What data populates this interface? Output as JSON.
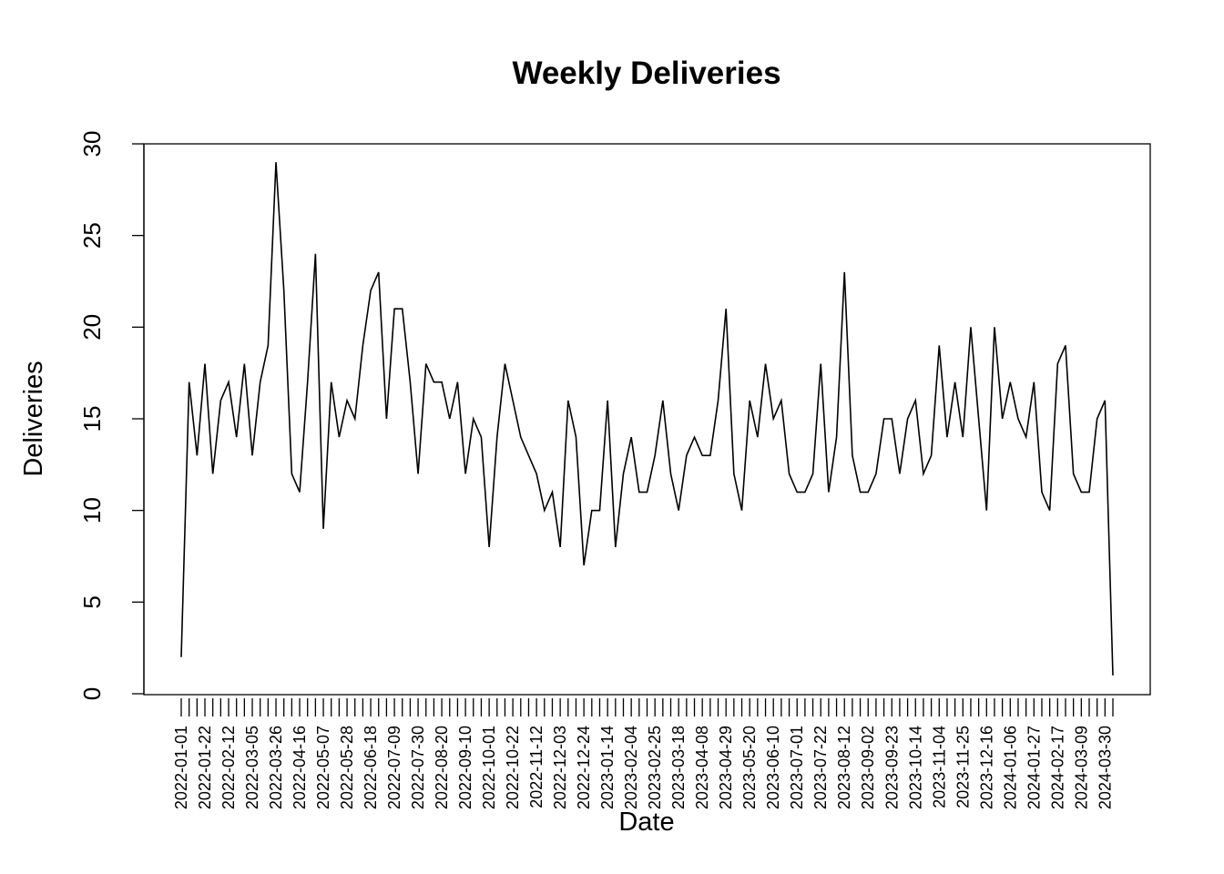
{
  "chart_data": {
    "type": "line",
    "title": "Weekly Deliveries",
    "xlabel": "Date",
    "ylabel": "Deliveries",
    "ylim": [
      0,
      30
    ],
    "yticks": [
      0,
      5,
      10,
      15,
      20,
      25,
      30
    ],
    "ytick_labels": [
      "0",
      "5",
      "10",
      "15",
      "20",
      "25",
      "30"
    ],
    "grid": false,
    "legend": "none",
    "line_color": "#000000",
    "start_date": "2022-01-01",
    "x_tick_labels": [
      "2022-01-01",
      "2022-01-22",
      "2022-02-12",
      "2022-03-05",
      "2022-03-26",
      "2022-04-16",
      "2022-05-07",
      "2022-05-28",
      "2022-06-18",
      "2022-07-09",
      "2022-07-30",
      "2022-08-20",
      "2022-09-10",
      "2022-10-01",
      "2022-10-22",
      "2022-11-12",
      "2022-12-03",
      "2022-12-24",
      "2023-01-14",
      "2023-02-04",
      "2023-02-25",
      "2023-03-18",
      "2023-04-08",
      "2023-04-29",
      "2023-05-20",
      "2023-06-10",
      "2023-07-01",
      "2023-07-22",
      "2023-08-12",
      "2023-09-02",
      "2023-09-23",
      "2023-10-14",
      "2023-11-04",
      "2023-11-25",
      "2023-12-16",
      "2024-01-06",
      "2024-01-27",
      "2024-02-17",
      "2024-03-09",
      "2024-03-30"
    ],
    "series": [
      {
        "values": [
          2,
          17,
          13,
          18,
          12,
          16,
          17,
          14,
          18,
          13,
          17,
          19,
          29,
          22,
          12,
          11,
          17,
          24,
          9,
          17,
          14,
          16,
          15,
          19,
          22,
          23,
          15,
          21,
          21,
          17,
          12,
          18,
          17,
          17,
          15,
          17,
          12,
          15,
          14,
          8,
          14,
          18,
          16,
          14,
          13,
          12,
          10,
          11,
          8,
          16,
          14,
          7,
          10,
          10,
          16,
          8,
          12,
          14,
          11,
          11,
          13,
          16,
          12,
          10,
          13,
          14,
          13,
          13,
          16,
          21,
          12,
          10,
          16,
          14,
          18,
          15,
          16,
          12,
          11,
          11,
          12,
          18,
          11,
          14,
          23,
          13,
          11,
          11,
          12,
          15,
          15,
          12,
          15,
          16,
          12,
          13,
          19,
          14,
          17,
          14,
          20,
          15,
          10,
          20,
          15,
          17,
          15,
          14,
          17,
          11,
          10,
          18,
          19,
          12,
          11,
          11,
          15,
          16,
          1
        ]
      }
    ]
  }
}
